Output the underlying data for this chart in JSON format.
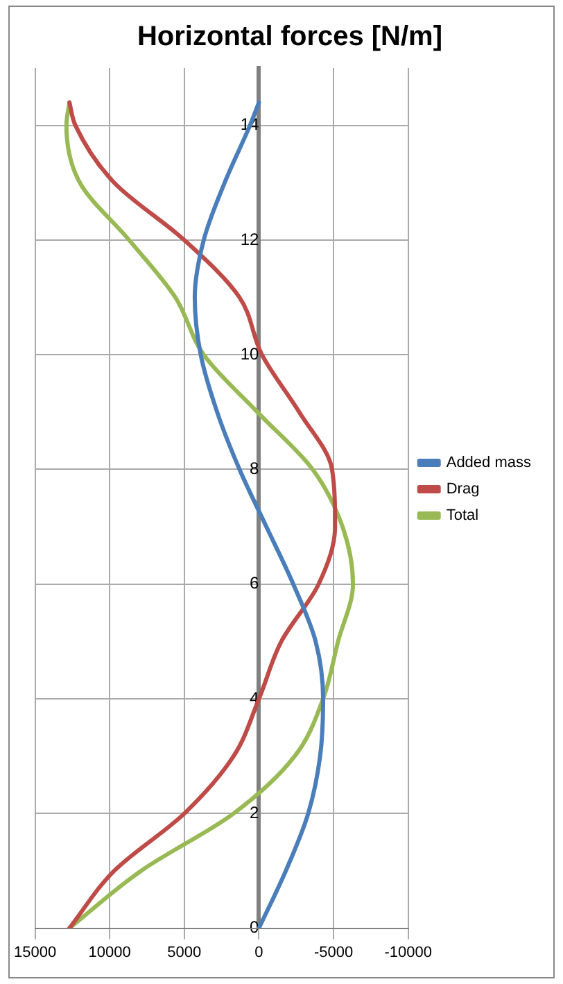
{
  "chart_data": {
    "type": "line",
    "title": "Horizontal forces [N/m]",
    "series": [
      {
        "name": "Added mass",
        "color": "#4a7ebb",
        "x": [
          0,
          -1800,
          -3300,
          -4100,
          -4300,
          -3800,
          -2300,
          -500,
          1300,
          2800,
          3900,
          4300,
          3700,
          2300,
          600,
          0
        ],
        "values": [
          0,
          1,
          2,
          3,
          4,
          5,
          6,
          7,
          8,
          9,
          10,
          11,
          12,
          13,
          14,
          14.4
        ]
      },
      {
        "name": "Drag",
        "color": "#be4b48",
        "x": [
          12700,
          9700,
          5000,
          1700,
          0,
          -1500,
          -4000,
          -5100,
          -4900,
          -2700,
          -200,
          1300,
          5000,
          9700,
          12300,
          12700
        ],
        "values": [
          0,
          1,
          2,
          3,
          4,
          5,
          6,
          7,
          8,
          9,
          10,
          11,
          12,
          13,
          14,
          14.4
        ]
      },
      {
        "name": "Total",
        "color": "#98b954",
        "x": [
          12700,
          7900,
          1700,
          -2400,
          -4300,
          -5300,
          -6300,
          -5600,
          -3600,
          100,
          3700,
          5600,
          8700,
          12000,
          12900,
          12700
        ],
        "values": [
          0,
          1,
          2,
          3,
          4,
          5,
          6,
          7,
          8,
          9,
          10,
          11,
          12,
          13,
          14,
          14.4
        ]
      }
    ],
    "xlim": [
      15000,
      -10000
    ],
    "xticks": [
      15000,
      10000,
      5000,
      0,
      -5000,
      -10000
    ],
    "ylim": [
      0,
      15
    ],
    "yticks": [
      0,
      2,
      4,
      6,
      8,
      10,
      12,
      14
    ],
    "grid": true,
    "legend": "right",
    "marker": "none",
    "line_style": "solid"
  }
}
